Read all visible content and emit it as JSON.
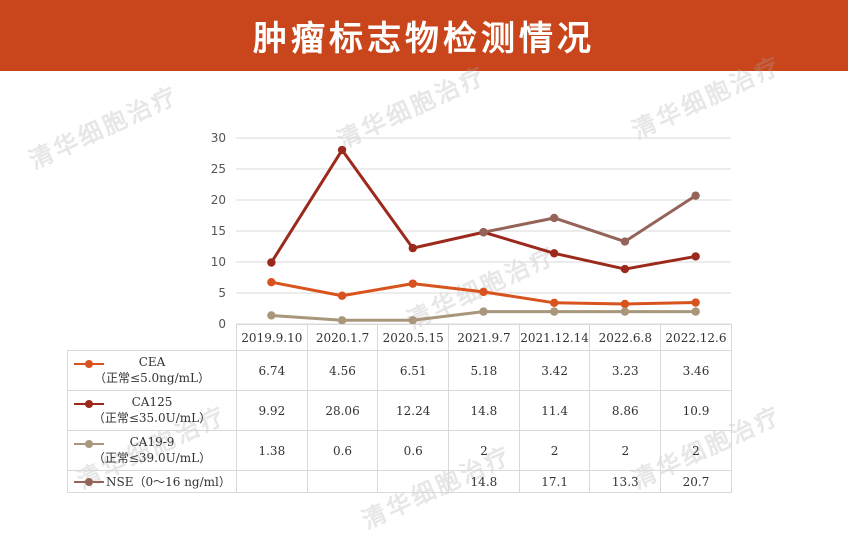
{
  "header": {
    "title": "肿瘤标志物检测情况"
  },
  "watermark": {
    "text": "清华细胞治疗"
  },
  "colors": {
    "banner": "#c9461c",
    "grid": "#d9d9d9"
  },
  "chart_data": {
    "type": "line",
    "categories": [
      "2019.9.10",
      "2020.1.7",
      "2020.5.15",
      "2021.9.7",
      "2021.12.14",
      "2022.6.8",
      "2022.12.6"
    ],
    "ylim": [
      0,
      30
    ],
    "yticks": [
      0,
      5,
      10,
      15,
      20,
      25,
      30
    ],
    "grid": true,
    "legend": "table-left",
    "series": [
      {
        "name": "CEA",
        "norm": "（正常≤5.0ng/mL）",
        "color": "#d9531e",
        "values": [
          6.74,
          4.56,
          6.51,
          5.18,
          3.42,
          3.23,
          3.46
        ],
        "labels": [
          "6.74",
          "4.56",
          "6.51",
          "5.18",
          "3.42",
          "3.23",
          "3.46"
        ]
      },
      {
        "name": "CA125",
        "norm": "（正常≤35.0U/mL）",
        "color": "#9c2a1c",
        "values": [
          9.92,
          28.06,
          12.24,
          14.8,
          11.4,
          8.86,
          10.9
        ],
        "labels": [
          "9.92",
          "28.06",
          "12.24",
          "14.8",
          "11.4",
          "8.86",
          "10.9"
        ]
      },
      {
        "name": "CA19-9",
        "norm": "（正常≤39.0U/mL）",
        "color": "#a8977a",
        "values": [
          1.38,
          0.6,
          0.6,
          2,
          2,
          2,
          2
        ],
        "labels": [
          "1.38",
          "0.6",
          "0.6",
          "2",
          "2",
          "2",
          "2"
        ]
      },
      {
        "name": "NSE（0～16 ng/ml）",
        "norm": "",
        "color": "#946458",
        "values": [
          null,
          null,
          null,
          14.8,
          17.1,
          13.3,
          20.7
        ],
        "labels": [
          "",
          "",
          "",
          "14.8",
          "17.1",
          "13.3",
          "20.7"
        ]
      }
    ]
  }
}
